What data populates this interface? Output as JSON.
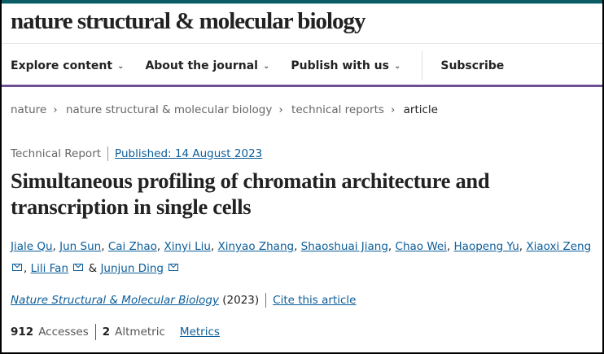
{
  "header": {
    "logo": "nature structural & molecular biology"
  },
  "nav": [
    {
      "label": "Explore content",
      "chevron": true
    },
    {
      "label": "About the journal",
      "chevron": true
    },
    {
      "label": "Publish with us",
      "chevron": true
    },
    {
      "label": "Subscribe",
      "chevron": false
    }
  ],
  "breadcrumb": [
    "nature",
    "nature structural & molecular biology",
    "technical reports",
    "article"
  ],
  "article": {
    "type": "Technical Report",
    "published": "Published: 14 August 2023",
    "title": "Simultaneous profiling of chromatin architecture and transcription in single cells",
    "authors": [
      "Jiale Qu",
      "Jun Sun",
      "Cai Zhao",
      "Xinyi Liu",
      "Xinyao Zhang",
      "Shaoshuai Jiang",
      "Chao Wei",
      "Haopeng Yu",
      "Xiaoxi Zeng",
      "Lili Fan",
      "Junjun Ding"
    ],
    "and": "&",
    "journal": "Nature Structural & Molecular Biology",
    "year": "(2023)",
    "cite": "Cite this article",
    "accesses_count": "912",
    "accesses_label": "Accesses",
    "altmetric_count": "2",
    "altmetric_label": "Altmetric",
    "metrics_link": "Metrics"
  },
  "colors": {
    "accent": "#6f4f94",
    "link": "#0c5d99",
    "topbar": "#0d5c63"
  }
}
